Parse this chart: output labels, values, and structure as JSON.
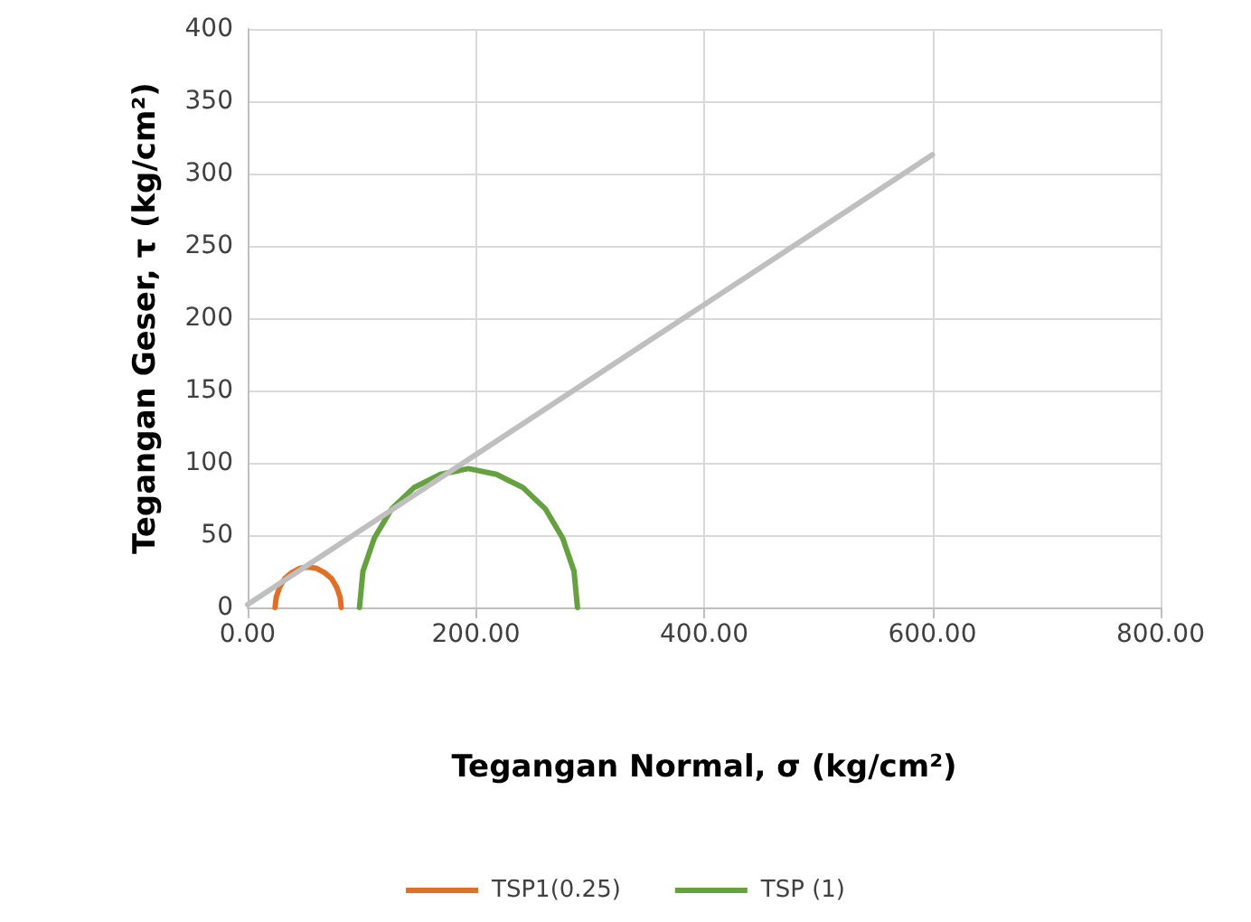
{
  "chart_data": {
    "type": "line",
    "xlabel": "Tegangan Normal, σ (kg/cm²)",
    "ylabel": "Tegangan Geser, τ (kg/cm²)",
    "xlim": [
      0,
      800
    ],
    "xticks": [
      {
        "value": 0,
        "label": "0.00"
      },
      {
        "value": 200,
        "label": "200.00"
      },
      {
        "value": 400,
        "label": "400.00"
      },
      {
        "value": 600,
        "label": "600.00"
      },
      {
        "value": 800,
        "label": "800.00"
      }
    ],
    "ylim": [
      0,
      400
    ],
    "yticks": [
      0,
      50,
      100,
      150,
      200,
      250,
      300,
      350,
      400
    ],
    "grid": true,
    "legend": "bottom",
    "marker": "none",
    "line_style": "solid",
    "series": [
      {
        "name": "TSP1(0.25)",
        "color": "#e07028",
        "x": [
          82,
          81,
          78,
          73.5,
          67.5,
          60.5,
          53,
          45.5,
          38.5,
          32.5,
          28,
          25,
          24
        ],
        "values": [
          0,
          7,
          14,
          20,
          24,
          27,
          28,
          27,
          24,
          20,
          14,
          7,
          0
        ]
      },
      {
        "name": "TSP (1)",
        "color": "#65a140",
        "x": [
          289,
          286,
          276,
          261,
          241,
          218,
          193.5,
          169,
          146,
          126,
          111,
          101,
          98
        ],
        "values": [
          0,
          25,
          48,
          68,
          83,
          92,
          96,
          92,
          83,
          68,
          48,
          25,
          0
        ]
      },
      {
        "color": "#bfbfbf",
        "x": [
          0,
          600
        ],
        "values": [
          2,
          313
        ]
      }
    ]
  }
}
